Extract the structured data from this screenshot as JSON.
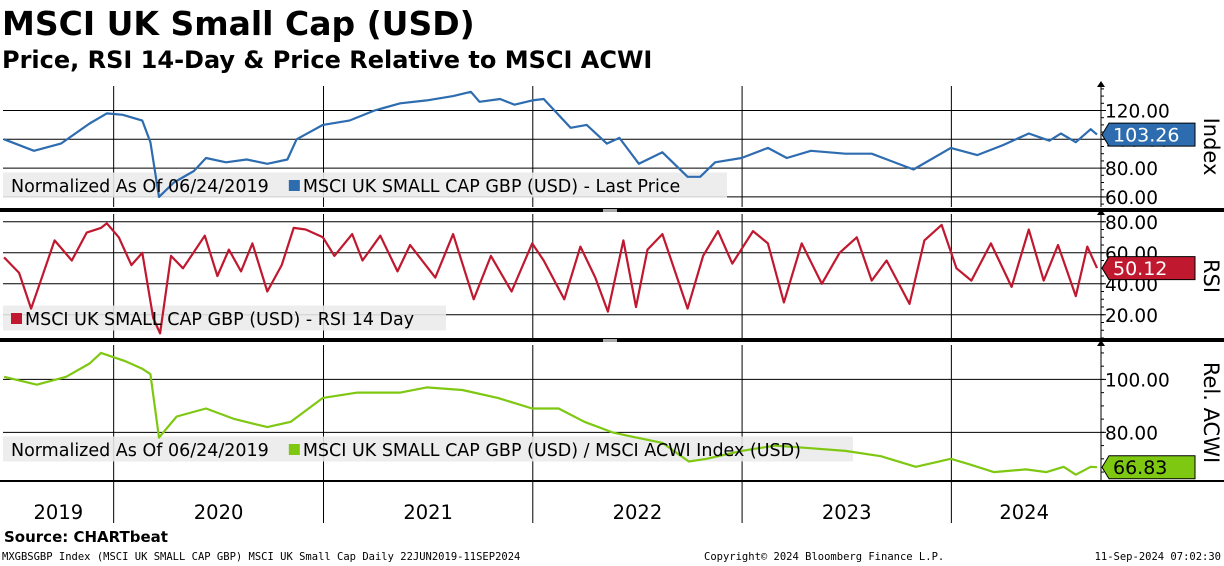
{
  "chart_data": {
    "type": "line",
    "title": "MSCI UK Small Cap (USD)",
    "subtitle": "Price, RSI 14-Day & Price Relative to MSCI ACWI",
    "x_range": [
      "2019-06-22",
      "2024-09-11"
    ],
    "years": [
      "2019",
      "2020",
      "2021",
      "2022",
      "2023",
      "2024"
    ],
    "panels": [
      {
        "id": "price",
        "axis_title": "Index",
        "ylim": [
          53,
          137
        ],
        "ticks": [
          60,
          80,
          100,
          120
        ],
        "tick_labels": [
          "60.00",
          "80.00",
          "100.00",
          "120.00"
        ],
        "color": "#2e6cb0",
        "last_value": "103.26",
        "legend_prefix": "Normalized As Of 06/24/2019",
        "series_name": "MSCI UK SMALL CAP GBP (USD) - Last Price",
        "points": [
          [
            "2019-06-24",
            100
          ],
          [
            "2019-08-15",
            92
          ],
          [
            "2019-10-01",
            97
          ],
          [
            "2019-11-20",
            111
          ],
          [
            "2019-12-20",
            118
          ],
          [
            "2020-01-17",
            117
          ],
          [
            "2020-02-20",
            113
          ],
          [
            "2020-03-05",
            98
          ],
          [
            "2020-03-20",
            60
          ],
          [
            "2020-04-15",
            70
          ],
          [
            "2020-05-20",
            78
          ],
          [
            "2020-06-10",
            87
          ],
          [
            "2020-07-15",
            84
          ],
          [
            "2020-08-20",
            86
          ],
          [
            "2020-09-25",
            83
          ],
          [
            "2020-10-30",
            86
          ],
          [
            "2020-11-15",
            100
          ],
          [
            "2020-12-31",
            110
          ],
          [
            "2021-02-15",
            113
          ],
          [
            "2021-03-31",
            120
          ],
          [
            "2021-05-15",
            125
          ],
          [
            "2021-06-30",
            127
          ],
          [
            "2021-08-15",
            130
          ],
          [
            "2021-09-15",
            133
          ],
          [
            "2021-09-30",
            126
          ],
          [
            "2021-11-05",
            128
          ],
          [
            "2021-11-30",
            124
          ],
          [
            "2021-12-31",
            127
          ],
          [
            "2022-01-20",
            128
          ],
          [
            "2022-03-08",
            108
          ],
          [
            "2022-04-05",
            110
          ],
          [
            "2022-05-10",
            97
          ],
          [
            "2022-06-01",
            101
          ],
          [
            "2022-07-05",
            83
          ],
          [
            "2022-08-15",
            91
          ],
          [
            "2022-09-28",
            74
          ],
          [
            "2022-10-20",
            74
          ],
          [
            "2022-11-15",
            84
          ],
          [
            "2022-12-31",
            87
          ],
          [
            "2023-02-15",
            94
          ],
          [
            "2023-03-20",
            87
          ],
          [
            "2023-05-01",
            92
          ],
          [
            "2023-06-30",
            90
          ],
          [
            "2023-08-15",
            90
          ],
          [
            "2023-10-27",
            79
          ],
          [
            "2023-12-31",
            94
          ],
          [
            "2024-02-15",
            89
          ],
          [
            "2024-03-31",
            96
          ],
          [
            "2024-05-15",
            104
          ],
          [
            "2024-06-20",
            99
          ],
          [
            "2024-07-10",
            104
          ],
          [
            "2024-08-05",
            98
          ],
          [
            "2024-08-31",
            107
          ],
          [
            "2024-09-11",
            103.26
          ]
        ]
      },
      {
        "id": "rsi",
        "axis_title": "RSI",
        "ylim": [
          5,
          85
        ],
        "ticks": [
          20,
          40,
          60,
          80
        ],
        "tick_labels": [
          "20.00",
          "40.00",
          "60.00",
          "80.00"
        ],
        "color": "#c0182f",
        "last_value": "50.12",
        "legend_prefix": "",
        "series_name": "MSCI UK SMALL CAP GBP (USD) - RSI 14 Day",
        "points": [
          [
            "2019-06-24",
            57
          ],
          [
            "2019-07-20",
            47
          ],
          [
            "2019-08-10",
            24
          ],
          [
            "2019-08-25",
            40
          ],
          [
            "2019-09-20",
            68
          ],
          [
            "2019-10-20",
            55
          ],
          [
            "2019-11-15",
            73
          ],
          [
            "2019-12-10",
            76
          ],
          [
            "2019-12-20",
            79
          ],
          [
            "2020-01-10",
            70
          ],
          [
            "2020-02-01",
            52
          ],
          [
            "2020-02-20",
            60
          ],
          [
            "2020-03-10",
            18
          ],
          [
            "2020-03-22",
            8
          ],
          [
            "2020-04-10",
            58
          ],
          [
            "2020-05-01",
            50
          ],
          [
            "2020-06-08",
            71
          ],
          [
            "2020-06-30",
            45
          ],
          [
            "2020-07-20",
            62
          ],
          [
            "2020-08-10",
            48
          ],
          [
            "2020-08-30",
            66
          ],
          [
            "2020-09-25",
            35
          ],
          [
            "2020-10-20",
            52
          ],
          [
            "2020-11-10",
            76
          ],
          [
            "2020-12-01",
            75
          ],
          [
            "2020-12-31",
            70
          ],
          [
            "2021-01-20",
            58
          ],
          [
            "2021-02-20",
            72
          ],
          [
            "2021-03-10",
            55
          ],
          [
            "2021-04-10",
            71
          ],
          [
            "2021-05-10",
            48
          ],
          [
            "2021-06-01",
            65
          ],
          [
            "2021-07-15",
            44
          ],
          [
            "2021-08-15",
            72
          ],
          [
            "2021-09-20",
            30
          ],
          [
            "2021-10-20",
            58
          ],
          [
            "2021-11-25",
            35
          ],
          [
            "2021-12-31",
            66
          ],
          [
            "2022-01-20",
            55
          ],
          [
            "2022-02-25",
            30
          ],
          [
            "2022-03-25",
            64
          ],
          [
            "2022-04-20",
            44
          ],
          [
            "2022-05-12",
            22
          ],
          [
            "2022-06-08",
            68
          ],
          [
            "2022-06-30",
            25
          ],
          [
            "2022-07-20",
            62
          ],
          [
            "2022-08-15",
            72
          ],
          [
            "2022-09-28",
            24
          ],
          [
            "2022-10-25",
            58
          ],
          [
            "2022-11-20",
            74
          ],
          [
            "2022-12-15",
            53
          ],
          [
            "2023-01-20",
            74
          ],
          [
            "2023-02-15",
            66
          ],
          [
            "2023-03-15",
            28
          ],
          [
            "2023-04-15",
            66
          ],
          [
            "2023-05-20",
            40
          ],
          [
            "2023-06-20",
            60
          ],
          [
            "2023-07-20",
            70
          ],
          [
            "2023-08-15",
            42
          ],
          [
            "2023-09-10",
            55
          ],
          [
            "2023-10-20",
            27
          ],
          [
            "2023-11-15",
            68
          ],
          [
            "2023-12-15",
            78
          ],
          [
            "2024-01-10",
            50
          ],
          [
            "2024-02-05",
            42
          ],
          [
            "2024-03-10",
            66
          ],
          [
            "2024-04-15",
            38
          ],
          [
            "2024-05-15",
            75
          ],
          [
            "2024-06-10",
            42
          ],
          [
            "2024-07-05",
            65
          ],
          [
            "2024-08-05",
            32
          ],
          [
            "2024-08-25",
            64
          ],
          [
            "2024-09-11",
            50.12
          ]
        ]
      },
      {
        "id": "rel",
        "axis_title": "Rel. ACWI",
        "ylim": [
          62,
          113
        ],
        "ticks": [
          80,
          100
        ],
        "tick_labels": [
          "80.00",
          "100.00"
        ],
        "color": "#7ec812",
        "last_value": "66.83",
        "legend_prefix": "Normalized As Of 06/24/2019",
        "series_name": "MSCI UK SMALL CAP GBP (USD) / MSCI ACWI Index (USD)",
        "points": [
          [
            "2019-06-24",
            101
          ],
          [
            "2019-08-20",
            98
          ],
          [
            "2019-10-10",
            101
          ],
          [
            "2019-11-20",
            106
          ],
          [
            "2019-12-10",
            110
          ],
          [
            "2020-01-20",
            107
          ],
          [
            "2020-02-20",
            104
          ],
          [
            "2020-03-05",
            102
          ],
          [
            "2020-03-20",
            78
          ],
          [
            "2020-04-20",
            86
          ],
          [
            "2020-06-10",
            89
          ],
          [
            "2020-07-30",
            85
          ],
          [
            "2020-09-25",
            82
          ],
          [
            "2020-11-05",
            84
          ],
          [
            "2020-12-31",
            93
          ],
          [
            "2021-03-01",
            95
          ],
          [
            "2021-05-15",
            95
          ],
          [
            "2021-06-30",
            97
          ],
          [
            "2021-08-31",
            96
          ],
          [
            "2021-11-01",
            93
          ],
          [
            "2021-12-31",
            89
          ],
          [
            "2022-02-15",
            89
          ],
          [
            "2022-04-01",
            84
          ],
          [
            "2022-05-20",
            80
          ],
          [
            "2022-07-01",
            78
          ],
          [
            "2022-08-15",
            76
          ],
          [
            "2022-09-30",
            69
          ],
          [
            "2022-10-31",
            70
          ],
          [
            "2022-12-31",
            73
          ],
          [
            "2023-02-28",
            75
          ],
          [
            "2023-04-30",
            74
          ],
          [
            "2023-06-30",
            73
          ],
          [
            "2023-08-31",
            71
          ],
          [
            "2023-10-31",
            67
          ],
          [
            "2023-12-31",
            70
          ],
          [
            "2024-01-31",
            68
          ],
          [
            "2024-03-15",
            65
          ],
          [
            "2024-05-10",
            66
          ],
          [
            "2024-06-15",
            65
          ],
          [
            "2024-07-15",
            67
          ],
          [
            "2024-08-05",
            64
          ],
          [
            "2024-08-31",
            67
          ],
          [
            "2024-09-11",
            66.83
          ]
        ]
      }
    ]
  },
  "source": "Source: CHARTbeat",
  "footer": {
    "left": "MXGBSGBP Index (MSCI UK SMALL CAP GBP) MSCI UK Small Cap  Daily 22JUN2019-11SEP2024",
    "center": "Copyright© 2024 Bloomberg Finance L.P.",
    "right": "11-Sep-2024 07:02:30"
  }
}
